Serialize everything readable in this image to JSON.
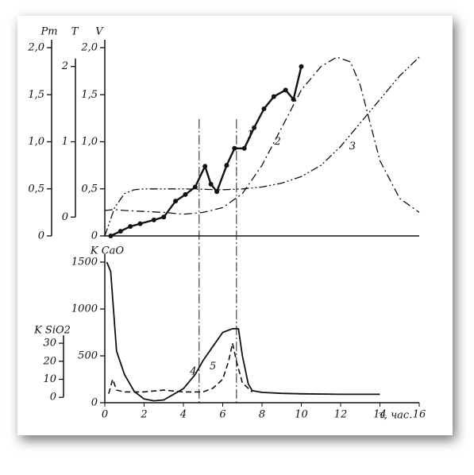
{
  "chart_data": [
    {
      "type": "line",
      "xlim": [
        0,
        16
      ],
      "vlines": [
        4.8,
        6.7
      ],
      "axes": [
        {
          "label": "Pm",
          "ylim": [
            0,
            2
          ],
          "yticks": [
            0,
            {
              "value": 0.5,
              "label": "0,5"
            },
            {
              "value": 1,
              "label": "1,0"
            },
            {
              "value": 1.5,
              "label": "1,5"
            },
            {
              "value": 2,
              "label": "2,0"
            }
          ]
        },
        {
          "label": "T",
          "ylim": [
            -0.25,
            2.25
          ],
          "yticks": [
            0,
            1,
            2
          ]
        },
        {
          "label": "V",
          "ylim": [
            0,
            2
          ],
          "yticks": [
            0,
            {
              "value": 0.5,
              "label": "0,5"
            },
            {
              "value": 1,
              "label": "1,0"
            },
            {
              "value": 1.5,
              "label": "1,5"
            },
            {
              "value": 2,
              "label": "2,0"
            }
          ]
        }
      ],
      "series": [
        {
          "name": "1",
          "axis": "V",
          "style": "solid",
          "width": 2.4,
          "markers": true,
          "color": "#111",
          "x": [
            0.3,
            0.8,
            1.3,
            1.8,
            2.5,
            3.0,
            3.6,
            4.1,
            4.6,
            5.1,
            5.4,
            5.7,
            6.2,
            6.6,
            7.1,
            7.6,
            8.1,
            8.6,
            9.2,
            9.6,
            10.0
          ],
          "values": [
            0,
            0.05,
            0.1,
            0.13,
            0.17,
            0.2,
            0.37,
            0.44,
            0.52,
            0.74,
            0.55,
            0.47,
            0.75,
            0.93,
            0.93,
            1.15,
            1.35,
            1.48,
            1.55,
            1.45,
            1.8
          ]
        },
        {
          "name": "2",
          "axis": "V",
          "style": "dashdot",
          "width": 1.3,
          "markers": false,
          "color": "#111",
          "x": [
            0,
            0.5,
            1,
            2,
            3,
            4,
            5,
            6,
            7,
            8,
            9,
            10,
            11,
            11.8,
            12.5,
            13,
            14,
            15,
            16
          ],
          "values": [
            0.27,
            0.28,
            0.27,
            0.26,
            0.25,
            0.23,
            0.25,
            0.3,
            0.45,
            0.75,
            1.15,
            1.55,
            1.8,
            1.9,
            1.85,
            1.6,
            0.8,
            0.4,
            0.25
          ]
        },
        {
          "name": "3",
          "axis": "V",
          "style": "dashdotdot",
          "width": 1.3,
          "markers": false,
          "color": "#111",
          "x": [
            0,
            0.5,
            1,
            1.5,
            2,
            4,
            6,
            7,
            8,
            9,
            10,
            11,
            12,
            13,
            14,
            15,
            16
          ],
          "values": [
            0,
            0.3,
            0.45,
            0.49,
            0.5,
            0.5,
            0.49,
            0.5,
            0.52,
            0.56,
            0.63,
            0.75,
            0.95,
            1.2,
            1.45,
            1.7,
            1.9
          ]
        }
      ]
    },
    {
      "type": "line",
      "xlim": [
        0,
        16
      ],
      "xticks": [
        0,
        2,
        4,
        6,
        8,
        10,
        12,
        14,
        16
      ],
      "xlabel": "τ, час.",
      "axes": [
        {
          "label": "K CaO",
          "ylim": [
            0,
            1500
          ],
          "yticks": [
            0,
            500,
            1000,
            1500
          ]
        },
        {
          "label": "K SiO2",
          "ylim": [
            -3,
            75
          ],
          "yticks": [
            0,
            10,
            20,
            30
          ]
        }
      ],
      "series": [
        {
          "name": "4",
          "axis": "K CaO",
          "style": "solid",
          "width": 1.8,
          "markers": false,
          "color": "#111",
          "x": [
            0.1,
            0.3,
            0.6,
            1,
            1.5,
            2,
            2.5,
            3,
            4,
            4.6,
            5,
            5.5,
            6,
            6.5,
            6.8,
            7,
            7.3,
            7.5,
            8,
            9,
            10,
            12,
            14
          ],
          "values": [
            1500,
            1400,
            550,
            300,
            120,
            40,
            20,
            30,
            150,
            300,
            450,
            600,
            750,
            790,
            790,
            500,
            200,
            130,
            110,
            100,
            95,
            90,
            90
          ]
        },
        {
          "name": "5",
          "axis": "K SiO2",
          "style": "dashed",
          "width": 1.6,
          "markers": false,
          "color": "#111",
          "x": [
            0.2,
            0.4,
            0.6,
            1,
            2,
            3,
            4,
            5,
            5.5,
            6,
            6.3,
            6.5,
            6.7,
            7,
            7.5
          ],
          "values": [
            2,
            10,
            4,
            3,
            3,
            4,
            3,
            3,
            5,
            10,
            20,
            30,
            20,
            8,
            3
          ]
        }
      ]
    }
  ]
}
